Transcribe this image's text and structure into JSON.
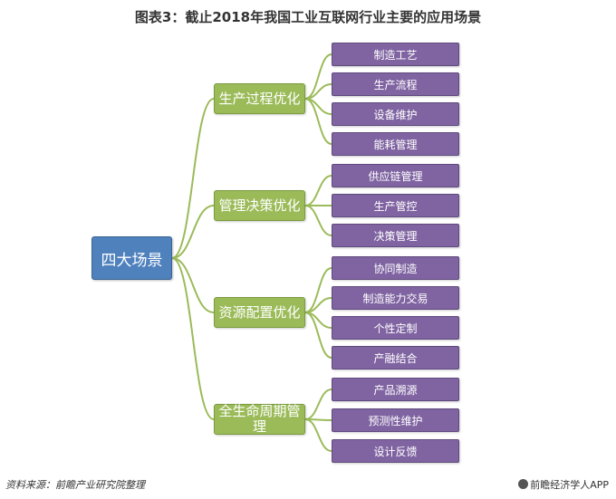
{
  "title": "图表3：截止2018年我国工业互联网行业主要的应用场景",
  "root": "四大场景",
  "categories": [
    {
      "label": "生产过程优化",
      "items": [
        "制造工艺",
        "生产流程",
        "设备维护",
        "能耗管理"
      ]
    },
    {
      "label": "管理决策优化",
      "items": [
        "供应链管理",
        "生产管控",
        "决策管理"
      ]
    },
    {
      "label": "资源配置优化",
      "items": [
        "协同制造",
        "制造能力交易",
        "个性定制",
        "产融结合"
      ]
    },
    {
      "label": "全生命周期管理",
      "items": [
        "产品溯源",
        "预测性维护",
        "设计反馈"
      ]
    }
  ],
  "footer": {
    "source": "资料来源：前瞻产业研究院整理",
    "brand": "前瞻经济学人APP"
  },
  "colors": {
    "root": "#4f81bd",
    "category": "#9bbb59",
    "leaf": "#8064a2",
    "connector": "#9bbb59"
  }
}
